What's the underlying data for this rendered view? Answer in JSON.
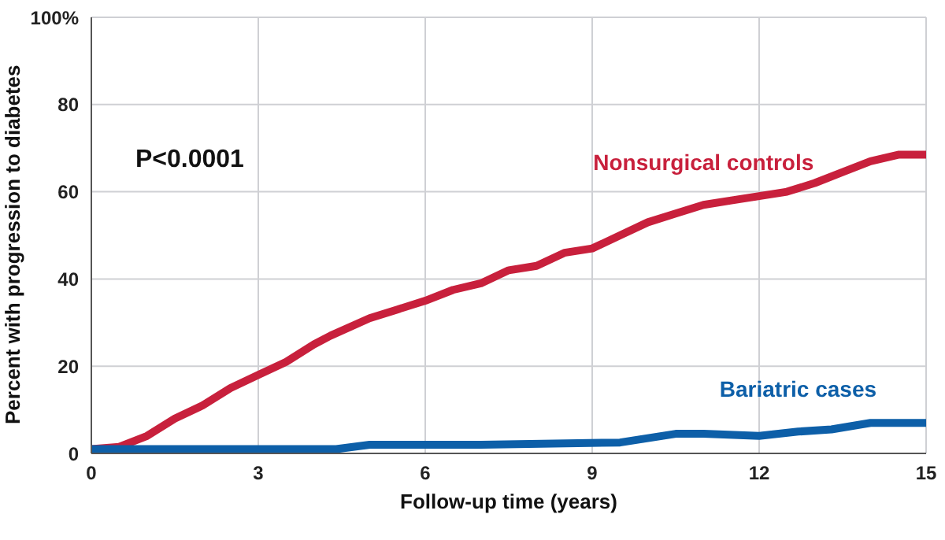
{
  "chart_data": {
    "type": "line",
    "xlabel": "Follow-up time (years)",
    "ylabel": "Percent with progression to diabetes",
    "annotations": [
      "P<0.0001"
    ],
    "series": [
      {
        "name": "Nonsurgical controls",
        "color": "#c8203c",
        "x": [
          0,
          0.5,
          1,
          1.5,
          2,
          2.5,
          3,
          3.5,
          4,
          4.3,
          5,
          5.5,
          6,
          6.5,
          7,
          7.5,
          8,
          8.5,
          9,
          9.5,
          10,
          10.5,
          11,
          11.5,
          12,
          12.5,
          13,
          13.5,
          14,
          14.5,
          15
        ],
        "values": [
          1,
          1.5,
          4,
          8,
          11,
          15,
          18,
          21,
          25,
          27,
          31,
          33,
          35,
          37.5,
          39,
          42,
          43,
          46,
          47,
          50,
          53,
          55,
          57,
          58,
          59,
          60,
          62,
          64.5,
          67,
          68.5,
          68.5
        ]
      },
      {
        "name": "Bariatric cases",
        "color": "#0d5fa8",
        "x": [
          0,
          2,
          4.4,
          5,
          7,
          9.5,
          10.5,
          11,
          12,
          12.7,
          13.3,
          14,
          15
        ],
        "values": [
          1,
          1,
          1,
          2,
          2,
          2.5,
          4.5,
          4.5,
          4,
          5,
          5.5,
          7,
          7
        ]
      }
    ],
    "xlim": [
      0,
      15
    ],
    "xticks": [
      0,
      3,
      6,
      9,
      12,
      15
    ],
    "ylim": [
      0,
      100
    ],
    "yticks": [
      0,
      20,
      40,
      60,
      80,
      {
        "value": 100,
        "label": "100%"
      }
    ],
    "grid": true,
    "legend": false,
    "marker": "none",
    "line_style": "solid"
  }
}
